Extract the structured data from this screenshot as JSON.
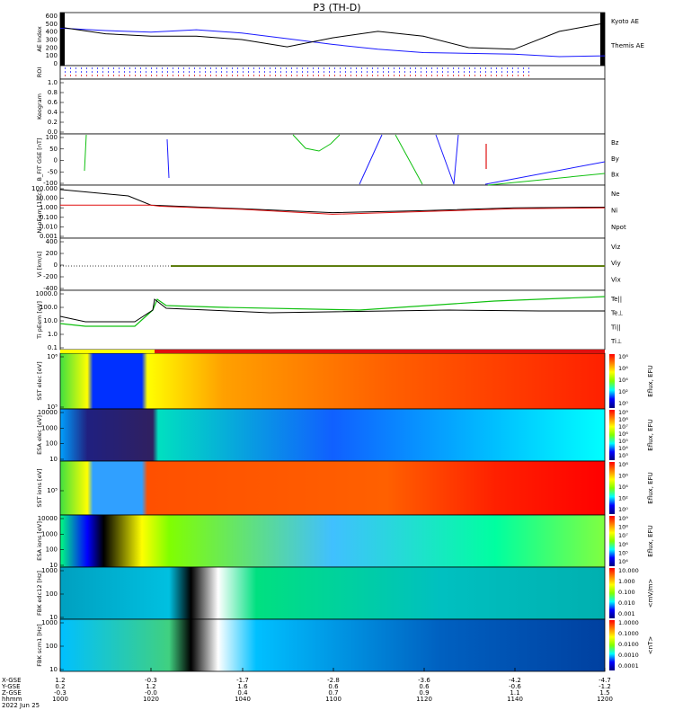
{
  "title": "P3 (TH-D)",
  "colors": {
    "black": "#000000",
    "blue": "#1a1aff",
    "red": "#e01010",
    "green": "#10c010"
  },
  "panels": [
    {
      "key": "ae",
      "ylabel": "AE Index",
      "ticks": [
        "600",
        "500",
        "400",
        "300",
        "200",
        "100",
        "0"
      ],
      "legend": [
        {
          "text": "Kyoto AE",
          "color": "#1a1aff"
        },
        {
          "text": "Themis AE",
          "color": "#000000"
        }
      ]
    },
    {
      "key": "roi",
      "ylabel": "ROI",
      "ticks": [],
      "legend": []
    },
    {
      "key": "keogram",
      "ylabel": "Keogram",
      "ticks": [
        "1.0",
        "0.8",
        "0.6",
        "0.4",
        "0.2",
        "0.0"
      ],
      "legend": []
    },
    {
      "key": "bfit",
      "ylabel": "B_FIT GSE [nT]",
      "ticks": [
        "100",
        "50",
        "0",
        "-50",
        "-100"
      ],
      "legend": [
        {
          "text": "Bz",
          "color": "#e01010"
        },
        {
          "text": "By",
          "color": "#10c010"
        },
        {
          "text": "Bx",
          "color": "#1a1aff"
        }
      ]
    },
    {
      "key": "ni",
      "ylabel": "Ni pEem [1/cc]",
      "ticks": [
        "100.000",
        "10.000",
        "1.000",
        "0.100",
        "0.010",
        "0.001"
      ],
      "legend": [
        {
          "text": "Ne",
          "color": "#e01010"
        },
        {
          "text": "Ni",
          "color": "#000000"
        },
        {
          "text": "Npot",
          "color": "#1a1aff"
        }
      ]
    },
    {
      "key": "vi",
      "ylabel": "Vi [km/s]",
      "ticks": [
        "400",
        "200",
        "0",
        "-200",
        "-400"
      ],
      "legend": [
        {
          "text": "Viz",
          "color": "#e01010"
        },
        {
          "text": "Viy",
          "color": "#10c010"
        },
        {
          "text": "Vix",
          "color": "#1a1aff"
        }
      ]
    },
    {
      "key": "ti",
      "ylabel": "Ti pEem [eV]",
      "ticks": [
        "1000.0",
        "100.0",
        "10.0",
        "1.0",
        "0.1"
      ],
      "legend": [
        {
          "text": "Te||",
          "color": "#000000"
        },
        {
          "text": "Te⊥",
          "color": "#e01010"
        },
        {
          "text": "Ti||",
          "color": "#10c010"
        },
        {
          "text": "Ti⊥",
          "color": "#1a1aff"
        }
      ]
    },
    {
      "key": "sst_e",
      "ylabel": "SST elec [eV]",
      "ticks": [
        "10⁶",
        "10⁵"
      ],
      "cbar_label": "Eflux, EFU",
      "cbar_ticks": [
        "10⁸",
        "10⁶",
        "10⁴",
        "10²",
        "10⁰"
      ]
    },
    {
      "key": "esa_e",
      "ylabel": "ESA elec [eV]",
      "ticks": [
        "10000",
        "1000",
        "100",
        "10"
      ],
      "cbar_label": "Eflux, EFU",
      "cbar_ticks": [
        "10⁹",
        "10⁸",
        "10⁷",
        "10⁶",
        "10⁵",
        "10⁴",
        "10³"
      ]
    },
    {
      "key": "sst_i",
      "ylabel": "SST ions [eV]",
      "ticks": [
        "10⁵"
      ],
      "cbar_label": "Eflux, EFU",
      "cbar_ticks": [
        "10⁸",
        "10⁶",
        "10⁴",
        "10²",
        "10⁰"
      ]
    },
    {
      "key": "esa_i",
      "ylabel": "ESA ions [eV]",
      "ticks": [
        "10000",
        "1000",
        "100",
        "10"
      ],
      "cbar_label": "Eflux, EFU",
      "cbar_ticks": [
        "10⁹",
        "10⁸",
        "10⁷",
        "10⁶",
        "10⁵",
        "10⁴"
      ]
    },
    {
      "key": "fbk_e",
      "ylabel": "FBK edc12 [Hz]",
      "ticks": [
        "1000",
        "100",
        "10"
      ],
      "cbar_label": "<mV/m>",
      "cbar_ticks": [
        "10.000",
        "1.000",
        "0.100",
        "0.010",
        "0.001"
      ]
    },
    {
      "key": "fbk_b",
      "ylabel": "FBK scm1 [Hz]",
      "ticks": [
        "1000",
        "100",
        "10"
      ],
      "cbar_label": "<nT>",
      "cbar_ticks": [
        "1.0000",
        "0.1000",
        "0.0100",
        "0.0010",
        "0.0001"
      ]
    }
  ],
  "footer": {
    "row_labels": [
      "X-GSE",
      "Y-GSE",
      "Z-GSE",
      "hhmm",
      "2022 Jun 25"
    ],
    "columns": [
      [
        "1.2",
        "0.2",
        "-0.3",
        "1000"
      ],
      [
        "-0.3",
        "1.2",
        "-0.0",
        "1020"
      ],
      [
        "-1.7",
        "1.6",
        "0.4",
        "1040"
      ],
      [
        "-2.8",
        "0.6",
        "0.7",
        "1100"
      ],
      [
        "-3.6",
        "0.6",
        "0.9",
        "1120"
      ],
      [
        "-4.2",
        "-0.6",
        "1.1",
        "1140"
      ],
      [
        "-4.7",
        "-1.2",
        "1.5",
        "1200"
      ]
    ]
  },
  "chart_data": {
    "type": "line",
    "title": "P3 (TH-D)",
    "x_label": "hhmm",
    "x_ticks": [
      "1000",
      "1020",
      "1040",
      "1100",
      "1120",
      "1140",
      "1200"
    ],
    "date": "2022 Jun 25",
    "series": [
      {
        "name": "Kyoto AE",
        "panel": "ae",
        "x": [
          0,
          10,
          20,
          30,
          40,
          50,
          60,
          70,
          80,
          90,
          100,
          110,
          120
        ],
        "values": [
          460,
          430,
          410,
          440,
          400,
          330,
          260,
          200,
          160,
          150,
          140,
          110,
          120
        ]
      },
      {
        "name": "Themis AE",
        "panel": "ae",
        "x": [
          0,
          10,
          20,
          30,
          40,
          50,
          60,
          70,
          80,
          90,
          100,
          110,
          120
        ],
        "values": [
          470,
          390,
          360,
          360,
          320,
          230,
          340,
          420,
          360,
          220,
          200,
          420,
          520
        ]
      },
      {
        "name": "Ni",
        "panel": "ni",
        "x": [
          0,
          15,
          20,
          40,
          60,
          80,
          100,
          120
        ],
        "values": [
          100,
          20,
          2,
          0.8,
          0.3,
          0.5,
          1.0,
          1.2
        ]
      },
      {
        "name": "Ne",
        "panel": "ni",
        "x": [
          0,
          20,
          22,
          40,
          60,
          80,
          100,
          120
        ],
        "values": [
          2,
          2,
          1.5,
          0.7,
          0.2,
          0.4,
          0.8,
          1.0
        ]
      }
    ]
  }
}
